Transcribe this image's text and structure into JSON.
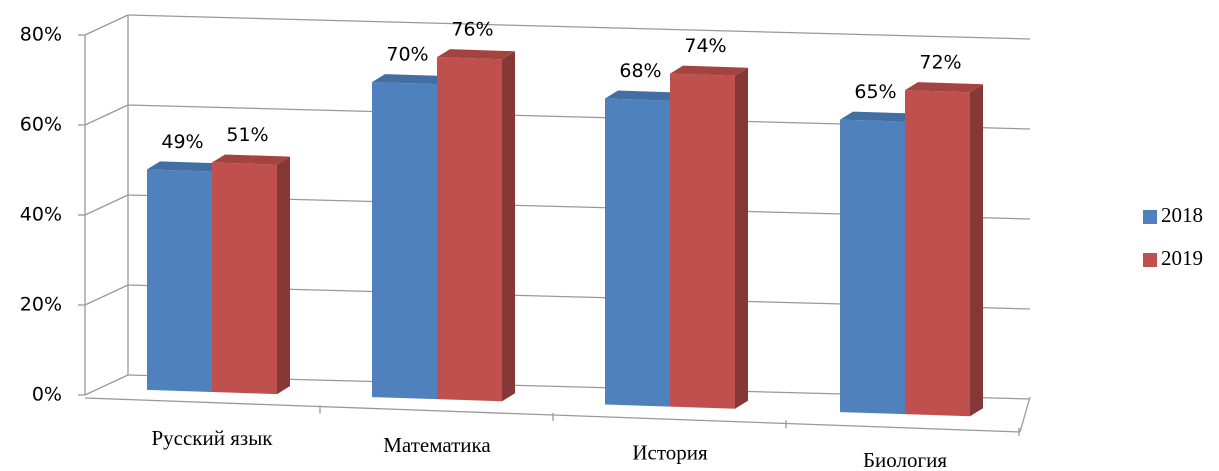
{
  "chart_data": {
    "type": "bar3d",
    "categories": [
      "Русский язык",
      "Математика",
      "История",
      "Биология"
    ],
    "series": [
      {
        "name": "2018",
        "color": "#4f81bd",
        "values": [
          49,
          70,
          68,
          65
        ],
        "value_labels": [
          "49%",
          "70%",
          "68%",
          "65%"
        ]
      },
      {
        "name": "2019",
        "color": "#c0504d",
        "values": [
          51,
          76,
          74,
          72
        ],
        "value_labels": [
          "51%",
          "76%",
          "74%",
          "72%"
        ]
      }
    ],
    "ylim": [
      0,
      80
    ],
    "yticks": [
      {
        "value": 0,
        "label": "0%"
      },
      {
        "value": 20,
        "label": "20%"
      },
      {
        "value": 40,
        "label": "40%"
      },
      {
        "value": 60,
        "label": "60%"
      },
      {
        "value": 80,
        "label": "80%"
      }
    ],
    "grid": true,
    "legend": "right"
  }
}
